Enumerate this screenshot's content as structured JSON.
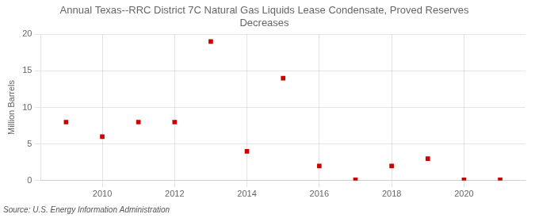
{
  "chart_data": {
    "type": "scatter",
    "title": "Annual Texas--RRC District 7C Natural Gas Liquids Lease Condensate, Proved Reserves\nDecreases",
    "ylabel": "Million Barrels",
    "source": "Source: U.S. Energy Information Administration",
    "x": [
      2009,
      2010,
      2011,
      2012,
      2013,
      2014,
      2015,
      2016,
      2017,
      2018,
      2019,
      2020,
      2021
    ],
    "values": [
      8.0,
      6.0,
      8.0,
      8.0,
      19.0,
      4.0,
      14.0,
      2.0,
      0.1,
      2.0,
      3.0,
      0.1,
      0.1
    ],
    "color": "#CC0000",
    "marker": "square",
    "xlim": [
      2008.3,
      2021.7
    ],
    "xticks": [
      2010,
      2012,
      2014,
      2016,
      2018,
      2020
    ],
    "ylim": [
      0,
      20
    ],
    "yticks": [
      0,
      5,
      10,
      15,
      20
    ],
    "grid": true
  }
}
